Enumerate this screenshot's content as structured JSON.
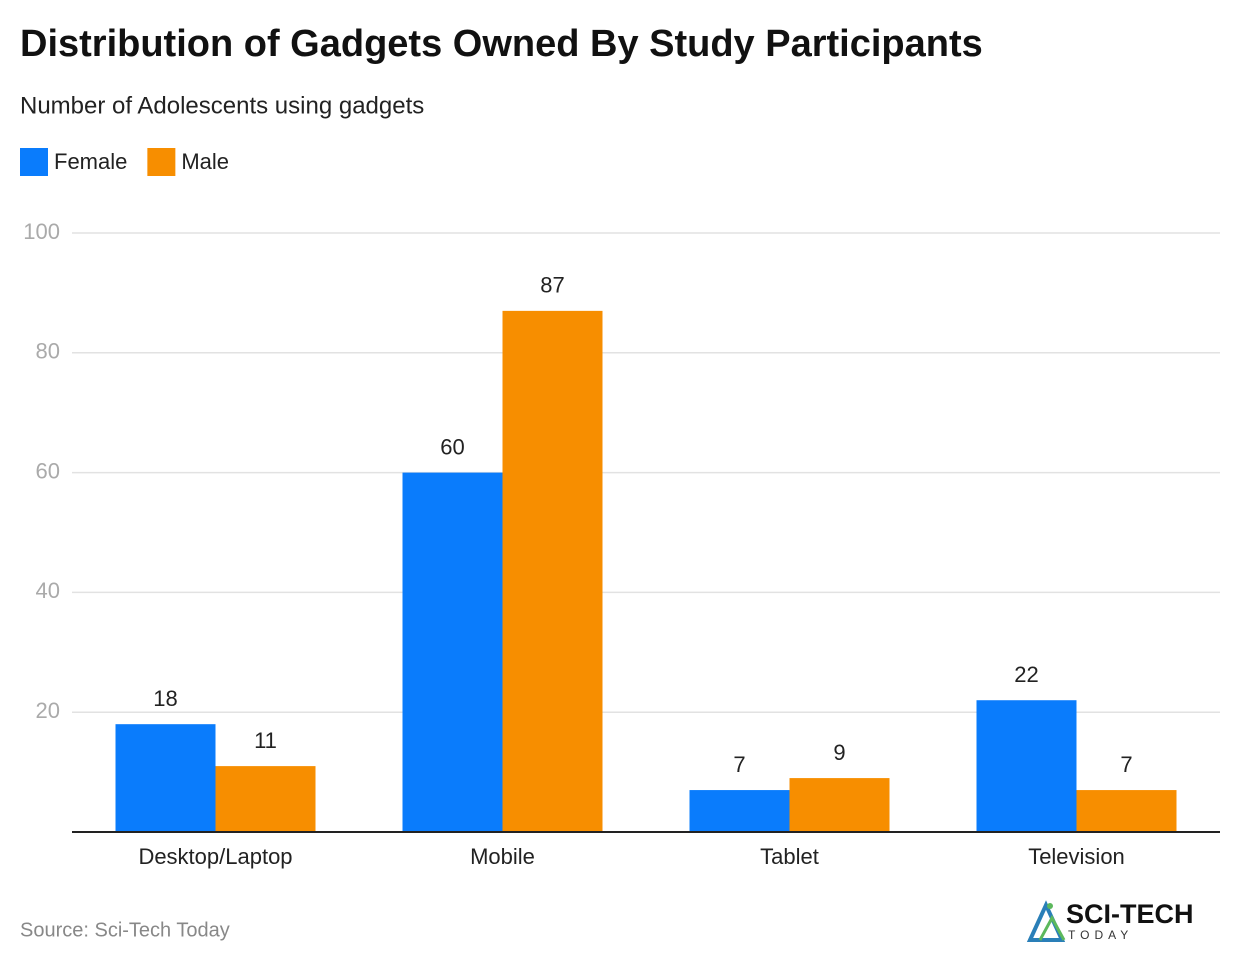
{
  "chart_data": {
    "type": "bar",
    "title": "Distribution of Gadgets Owned By Study Participants",
    "subtitle": "Number of Adolescents using gadgets",
    "categories": [
      "Desktop/Laptop",
      "Mobile",
      "Tablet",
      "Television"
    ],
    "series": [
      {
        "name": "Female",
        "color": "#0a7cfc",
        "values": [
          18,
          60,
          7,
          22
        ]
      },
      {
        "name": "Male",
        "color": "#f78e00",
        "values": [
          11,
          87,
          9,
          7
        ]
      }
    ],
    "ylim": [
      0,
      100
    ],
    "yticks": [
      20,
      40,
      60,
      80,
      100
    ],
    "grid": true,
    "legend": "top-left"
  },
  "footer": {
    "source": "Source: Sci-Tech Today",
    "logo": "SCI-TECH",
    "logo_tagline": "TODAY"
  }
}
